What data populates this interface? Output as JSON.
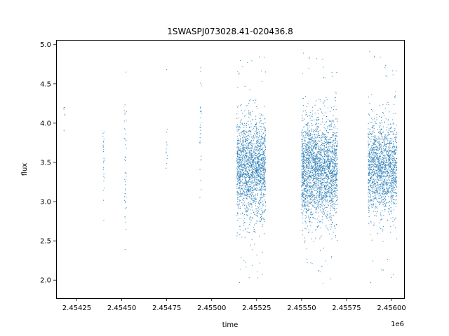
{
  "chart_data": {
    "type": "scatter",
    "title": "1SWASPJ073028.41-020436.8",
    "xlabel": "time",
    "ylabel": "flux",
    "x_offset_label": "1e6",
    "xlim": [
      2.454135,
      2.45607
    ],
    "ylim": [
      1.77,
      5.06
    ],
    "grid": false,
    "legend": "none",
    "x_ticks": [
      2.45425,
      2.4545,
      2.45475,
      2.455,
      2.45525,
      2.4555,
      2.45575,
      2.456
    ],
    "x_tick_labels": [
      "2.45425",
      "2.45450",
      "2.45475",
      "2.45500",
      "2.45525",
      "2.45550",
      "2.45575",
      "2.45600"
    ],
    "y_ticks": [
      2.0,
      2.5,
      3.0,
      3.5,
      4.0,
      4.5,
      5.0
    ],
    "y_tick_labels": [
      "2.0",
      "2.5",
      "3.0",
      "3.5",
      "4.0",
      "4.5",
      "5.0"
    ],
    "series": [
      {
        "color": "#1f77b4",
        "marker_size": 0.6,
        "clusters": [
          {
            "x_center": 2.45418,
            "x_width": 4e-06,
            "n": 6,
            "y_mean": 4.15,
            "y_std": 0.12
          },
          {
            "x_center": 2.4544,
            "x_width": 4e-06,
            "n": 25,
            "y_mean": 3.5,
            "y_std": 0.3
          },
          {
            "x_center": 2.45452,
            "x_width": 6e-06,
            "n": 45,
            "y_mean": 3.4,
            "y_std": 0.5
          },
          {
            "x_center": 2.45475,
            "x_width": 4e-06,
            "n": 12,
            "y_mean": 3.65,
            "y_std": 0.18
          },
          {
            "x_center": 2.45494,
            "x_width": 6e-06,
            "n": 30,
            "y_mean": 3.9,
            "y_std": 0.4
          },
          {
            "x_center": 2.45522,
            "x_width": 8e-05,
            "n": 1800,
            "y_mean": 3.42,
            "y_std": 0.32
          },
          {
            "x_center": 2.4556,
            "x_width": 0.0001,
            "n": 2400,
            "y_mean": 3.4,
            "y_std": 0.33
          },
          {
            "x_center": 2.45595,
            "x_width": 8e-05,
            "n": 1600,
            "y_mean": 3.42,
            "y_std": 0.3
          }
        ]
      }
    ]
  }
}
